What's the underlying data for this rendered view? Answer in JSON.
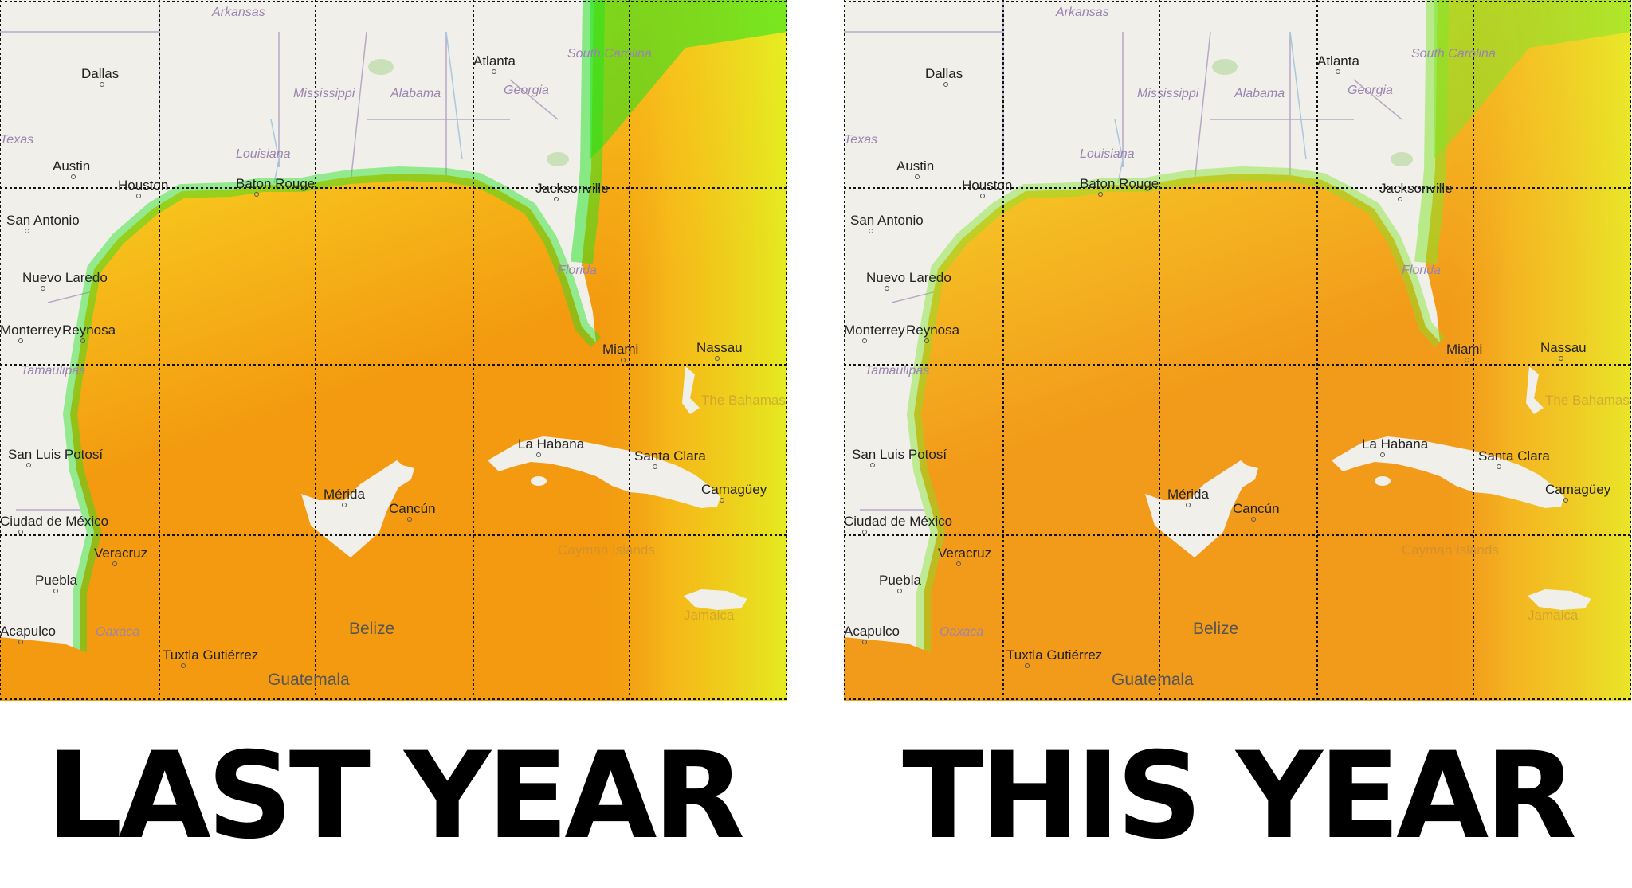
{
  "panels": [
    {
      "id": "left",
      "caption": "LAST YEAR",
      "water_colors": {
        "deep": "#f39a10",
        "mid": "#f7c31c",
        "shelf": "#e3f422",
        "coast": "#1ee31e"
      }
    },
    {
      "id": "right",
      "caption": "THIS YEAR",
      "water_colors": {
        "deep": "#f29a1a",
        "mid": "#f5c024",
        "shelf": "#e8ee2a",
        "coast": "#7fe52a"
      }
    }
  ],
  "map_labels": {
    "cities": [
      "Dallas",
      "Atlanta",
      "Austin",
      "Houston",
      "Baton Rouge",
      "Jacksonville",
      "San Antonio",
      "Nuevo Laredo",
      "Monterrey",
      "Reynosa",
      "Miami",
      "La Habana",
      "Santa Clara",
      "Camagüey",
      "Mérida",
      "Cancún",
      "San Luis Potosí",
      "Ciudad de México",
      "Veracruz",
      "Puebla",
      "Acapulco",
      "Tuxtla Gutiérrez",
      "Nassau"
    ],
    "regions": [
      "Arkansas",
      "South Carolina",
      "Mississippi",
      "Alabama",
      "Georgia",
      "Louisiana",
      "Florida",
      "Texas",
      "Tamaulipas",
      "Oaxaca"
    ],
    "countries": [
      "Guatemala",
      "Belize",
      "The Bahamas",
      "Cayman Islands",
      "Jamaica"
    ]
  },
  "legend_colors": {
    "land": "#f1efea",
    "grid": "#111111",
    "border": "#b8a8c8"
  }
}
